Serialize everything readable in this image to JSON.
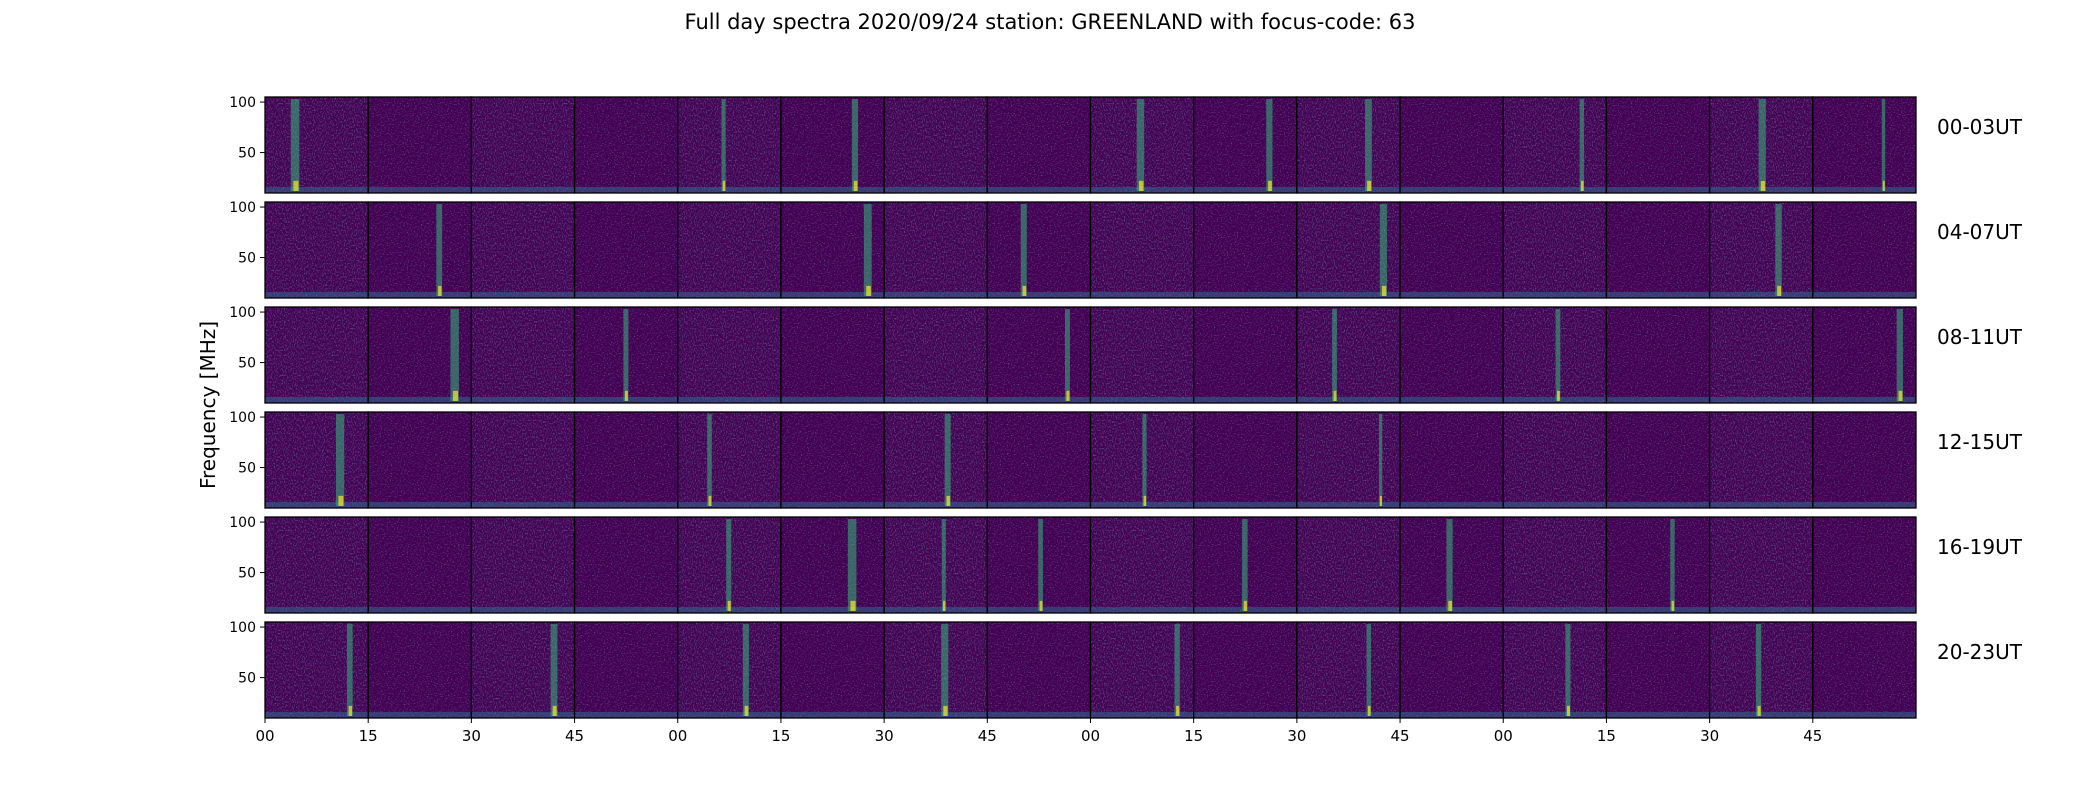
{
  "chart_data": {
    "type": "heatmap",
    "title": "Full day spectra 2020/09/24 station: GREENLAND with focus-code: 63",
    "ylabel": "Frequency [MHz]",
    "xlabel": "",
    "ylim": [
      10,
      105
    ],
    "y_ticks": [
      "100",
      "50"
    ],
    "y_tick_values": [
      100,
      50
    ],
    "x_ticks": [
      "00",
      "15",
      "30",
      "45",
      "00",
      "15",
      "30",
      "45",
      "00",
      "15",
      "30",
      "45",
      "00",
      "15",
      "30",
      "45"
    ],
    "colormap": "viridis",
    "panels_per_row": 16,
    "rows": [
      {
        "label": "00-03UT",
        "burst_panels": [
          0,
          4,
          5,
          8,
          9,
          10,
          12,
          14,
          15
        ]
      },
      {
        "label": "04-07UT",
        "burst_panels": [
          1,
          5,
          7,
          10,
          14
        ]
      },
      {
        "label": "08-11UT",
        "burst_panels": [
          1,
          3,
          7,
          10,
          12,
          15
        ]
      },
      {
        "label": "12-15UT",
        "burst_panels": [
          0,
          4,
          6,
          8,
          10
        ]
      },
      {
        "label": "16-19UT",
        "burst_panels": [
          4,
          5,
          6,
          7,
          9,
          11,
          13
        ]
      },
      {
        "label": "20-23UT",
        "burst_panels": [
          0,
          2,
          4,
          6,
          8,
          10,
          12,
          14
        ]
      }
    ]
  },
  "colors": {
    "background": "#440154",
    "mid": "#31688e",
    "bright": "#35b779",
    "peak": "#fde725"
  }
}
